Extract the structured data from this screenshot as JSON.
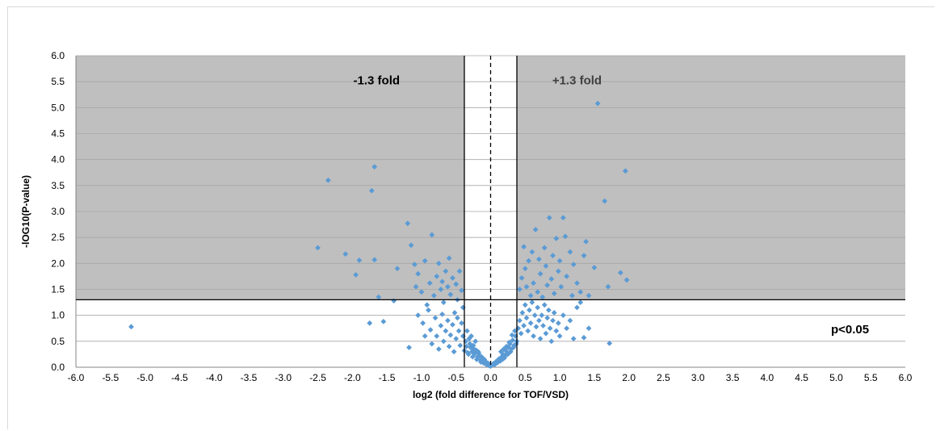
{
  "chart_data": {
    "type": "scatter",
    "xlabel": "log2 (fold difference for TOF/VSD)",
    "ylabel": "-lOG10(P-value)",
    "xlim": [
      -6.0,
      6.0
    ],
    "ylim": [
      0.0,
      6.0
    ],
    "x_ticks": [
      "-6.0",
      "-5.5",
      "-5.0",
      "-4.5",
      "-4.0",
      "-3.5",
      "-3.0",
      "-2.5",
      "-2.0",
      "-1.5",
      "-1.0",
      "-0.5",
      "0.0",
      "0.5",
      "1.0",
      "1.5",
      "2.0",
      "2.5",
      "3.0",
      "3.5",
      "4.0",
      "4.5",
      "5.0",
      "5.5",
      "6.0"
    ],
    "y_ticks": [
      "0.0",
      "0.5",
      "1.0",
      "1.5",
      "2.0",
      "2.5",
      "3.0",
      "3.5",
      "4.0",
      "4.5",
      "5.0",
      "5.5",
      "6.0"
    ],
    "grid": true,
    "point_color": "#5b9bd5",
    "shaded_region_color": "#bfbfbf",
    "threshold_y": 1.3,
    "threshold_x": [
      -0.38,
      0.38
    ],
    "center_line_x": 0.0,
    "annotations": [
      {
        "text": "-1.3 fold",
        "x": -1.65,
        "y": 5.45,
        "color": "#000000"
      },
      {
        "text": "+1.3 fold",
        "x": 1.25,
        "y": 5.45,
        "color": "#404040"
      },
      {
        "text": "p<0.05",
        "x": 5.2,
        "y": 0.65,
        "color": "#000000"
      }
    ],
    "points": [
      [
        -5.2,
        0.78
      ],
      [
        -2.5,
        2.3
      ],
      [
        -2.35,
        3.6
      ],
      [
        -2.1,
        2.18
      ],
      [
        -1.9,
        2.06
      ],
      [
        -1.95,
        1.78
      ],
      [
        -1.72,
        3.4
      ],
      [
        -1.68,
        3.86
      ],
      [
        -1.68,
        2.07
      ],
      [
        -1.62,
        1.35
      ],
      [
        -1.75,
        0.85
      ],
      [
        -1.55,
        0.88
      ],
      [
        -1.35,
        1.9
      ],
      [
        -1.4,
        1.28
      ],
      [
        -1.2,
        2.77
      ],
      [
        -1.15,
        2.35
      ],
      [
        -1.18,
        0.38
      ],
      [
        -1.1,
        1.98
      ],
      [
        -1.08,
        1.55
      ],
      [
        -1.05,
        1.8
      ],
      [
        -1.0,
        1.45
      ],
      [
        -0.95,
        2.05
      ],
      [
        -0.92,
        1.2
      ],
      [
        -0.88,
        1.62
      ],
      [
        -0.85,
        2.55
      ],
      [
        -0.82,
        1.38
      ],
      [
        -0.78,
        1.75
      ],
      [
        -0.75,
        2.0
      ],
      [
        -0.72,
        1.5
      ],
      [
        -0.7,
        1.65
      ],
      [
        -0.68,
        1.25
      ],
      [
        -0.65,
        1.85
      ],
      [
        -0.62,
        1.55
      ],
      [
        -0.6,
        2.1
      ],
      [
        -0.58,
        1.4
      ],
      [
        -0.55,
        1.72
      ],
      [
        -0.52,
        1.05
      ],
      [
        -0.5,
        1.6
      ],
      [
        -0.48,
        1.3
      ],
      [
        -0.45,
        1.85
      ],
      [
        -0.42,
        1.48
      ],
      [
        -0.4,
        1.15
      ],
      [
        -1.05,
        1.0
      ],
      [
        -0.98,
        0.85
      ],
      [
        -0.95,
        0.6
      ],
      [
        -0.9,
        1.1
      ],
      [
        -0.87,
        0.72
      ],
      [
        -0.85,
        0.45
      ],
      [
        -0.8,
        0.95
      ],
      [
        -0.78,
        0.6
      ],
      [
        -0.75,
        0.35
      ],
      [
        -0.72,
        0.8
      ],
      [
        -0.7,
        1.02
      ],
      [
        -0.68,
        0.5
      ],
      [
        -0.65,
        0.7
      ],
      [
        -0.62,
        0.9
      ],
      [
        -0.6,
        0.4
      ],
      [
        -0.58,
        0.62
      ],
      [
        -0.55,
        0.82
      ],
      [
        -0.53,
        0.3
      ],
      [
        -0.5,
        0.55
      ],
      [
        -0.48,
        0.95
      ],
      [
        -0.46,
        0.7
      ],
      [
        -0.44,
        0.42
      ],
      [
        -0.42,
        0.85
      ],
      [
        -0.4,
        0.6
      ],
      [
        -0.38,
        0.32
      ],
      [
        -0.36,
        0.5
      ],
      [
        -0.34,
        0.7
      ],
      [
        -0.32,
        0.25
      ],
      [
        -0.3,
        0.45
      ],
      [
        -0.28,
        0.6
      ],
      [
        -0.26,
        0.2
      ],
      [
        -0.24,
        0.35
      ],
      [
        -0.22,
        0.5
      ],
      [
        -0.2,
        0.15
      ],
      [
        -0.18,
        0.3
      ],
      [
        -0.16,
        0.22
      ],
      [
        -0.14,
        0.1
      ],
      [
        -0.12,
        0.18
      ],
      [
        -0.1,
        0.08
      ],
      [
        -0.08,
        0.12
      ],
      [
        -0.06,
        0.05
      ],
      [
        -0.04,
        0.08
      ],
      [
        -0.02,
        0.03
      ],
      [
        0.0,
        0.02
      ],
      [
        -0.35,
        0.4
      ],
      [
        -0.33,
        0.28
      ],
      [
        -0.31,
        0.55
      ],
      [
        -0.29,
        0.38
      ],
      [
        -0.27,
        0.3
      ],
      [
        -0.25,
        0.42
      ],
      [
        -0.23,
        0.26
      ],
      [
        -0.21,
        0.33
      ],
      [
        -0.19,
        0.2
      ],
      [
        -0.17,
        0.27
      ],
      [
        -0.15,
        0.14
      ],
      [
        -0.13,
        0.2
      ],
      [
        -0.11,
        0.12
      ],
      [
        -0.09,
        0.15
      ],
      [
        -0.07,
        0.1
      ],
      [
        -0.05,
        0.06
      ],
      [
        0.02,
        0.04
      ],
      [
        0.04,
        0.07
      ],
      [
        0.06,
        0.05
      ],
      [
        0.08,
        0.11
      ],
      [
        0.1,
        0.09
      ],
      [
        0.12,
        0.16
      ],
      [
        0.14,
        0.12
      ],
      [
        0.16,
        0.2
      ],
      [
        0.18,
        0.25
      ],
      [
        0.2,
        0.18
      ],
      [
        0.22,
        0.32
      ],
      [
        0.24,
        0.28
      ],
      [
        0.26,
        0.38
      ],
      [
        0.28,
        0.45
      ],
      [
        0.3,
        0.35
      ],
      [
        0.32,
        0.52
      ],
      [
        0.34,
        0.42
      ],
      [
        0.36,
        0.6
      ],
      [
        0.38,
        0.5
      ],
      [
        0.15,
        0.3
      ],
      [
        0.17,
        0.15
      ],
      [
        0.19,
        0.35
      ],
      [
        0.21,
        0.22
      ],
      [
        0.23,
        0.4
      ],
      [
        0.25,
        0.25
      ],
      [
        0.27,
        0.48
      ],
      [
        0.29,
        0.3
      ],
      [
        0.31,
        0.62
      ],
      [
        0.33,
        0.38
      ],
      [
        0.35,
        0.7
      ],
      [
        0.37,
        0.45
      ],
      [
        0.4,
        0.75
      ],
      [
        0.42,
        0.9
      ],
      [
        0.44,
        0.65
      ],
      [
        0.46,
        1.05
      ],
      [
        0.48,
        0.8
      ],
      [
        0.5,
        1.2
      ],
      [
        0.52,
        0.95
      ],
      [
        0.54,
        0.7
      ],
      [
        0.56,
        1.1
      ],
      [
        0.58,
        0.85
      ],
      [
        0.6,
        1.25
      ],
      [
        0.62,
        0.6
      ],
      [
        0.64,
        1.0
      ],
      [
        0.66,
        0.78
      ],
      [
        0.68,
        1.15
      ],
      [
        0.7,
        0.9
      ],
      [
        0.72,
        0.55
      ],
      [
        0.74,
        1.0
      ],
      [
        0.76,
        0.8
      ],
      [
        0.78,
        1.2
      ],
      [
        0.8,
        0.65
      ],
      [
        0.82,
        0.95
      ],
      [
        0.84,
        1.1
      ],
      [
        0.86,
        0.75
      ],
      [
        0.88,
        0.5
      ],
      [
        0.9,
        0.9
      ],
      [
        0.92,
        1.05
      ],
      [
        0.95,
        0.7
      ],
      [
        0.98,
        0.85
      ],
      [
        1.0,
        0.6
      ],
      [
        1.05,
        1.0
      ],
      [
        1.1,
        0.75
      ],
      [
        1.15,
        0.9
      ],
      [
        1.2,
        0.55
      ],
      [
        1.25,
        1.15
      ],
      [
        1.3,
        1.25
      ],
      [
        1.35,
        0.57
      ],
      [
        1.42,
        0.75
      ],
      [
        0.42,
        1.5
      ],
      [
        0.45,
        1.72
      ],
      [
        0.48,
        2.32
      ],
      [
        0.5,
        1.9
      ],
      [
        0.52,
        1.55
      ],
      [
        0.55,
        2.05
      ],
      [
        0.58,
        1.38
      ],
      [
        0.6,
        2.22
      ],
      [
        0.62,
        1.62
      ],
      [
        0.65,
        2.65
      ],
      [
        0.68,
        1.45
      ],
      [
        0.7,
        2.08
      ],
      [
        0.72,
        1.8
      ],
      [
        0.75,
        1.35
      ],
      [
        0.78,
        2.3
      ],
      [
        0.8,
        1.95
      ],
      [
        0.82,
        1.58
      ],
      [
        0.85,
        2.88
      ],
      [
        0.88,
        1.7
      ],
      [
        0.9,
        2.15
      ],
      [
        0.92,
        1.42
      ],
      [
        0.95,
        2.48
      ],
      [
        0.98,
        1.85
      ],
      [
        1.0,
        2.05
      ],
      [
        1.02,
        1.55
      ],
      [
        1.05,
        2.88
      ],
      [
        1.08,
        2.52
      ],
      [
        1.1,
        1.75
      ],
      [
        1.15,
        2.22
      ],
      [
        1.18,
        1.38
      ],
      [
        1.2,
        1.98
      ],
      [
        1.25,
        1.62
      ],
      [
        1.3,
        1.45
      ],
      [
        1.35,
        2.15
      ],
      [
        1.38,
        2.42
      ],
      [
        1.42,
        1.38
      ],
      [
        1.5,
        1.92
      ],
      [
        1.55,
        5.08
      ],
      [
        1.65,
        3.2
      ],
      [
        1.7,
        1.55
      ],
      [
        1.72,
        0.46
      ],
      [
        1.88,
        1.82
      ],
      [
        1.95,
        3.78
      ],
      [
        1.97,
        1.68
      ]
    ]
  }
}
